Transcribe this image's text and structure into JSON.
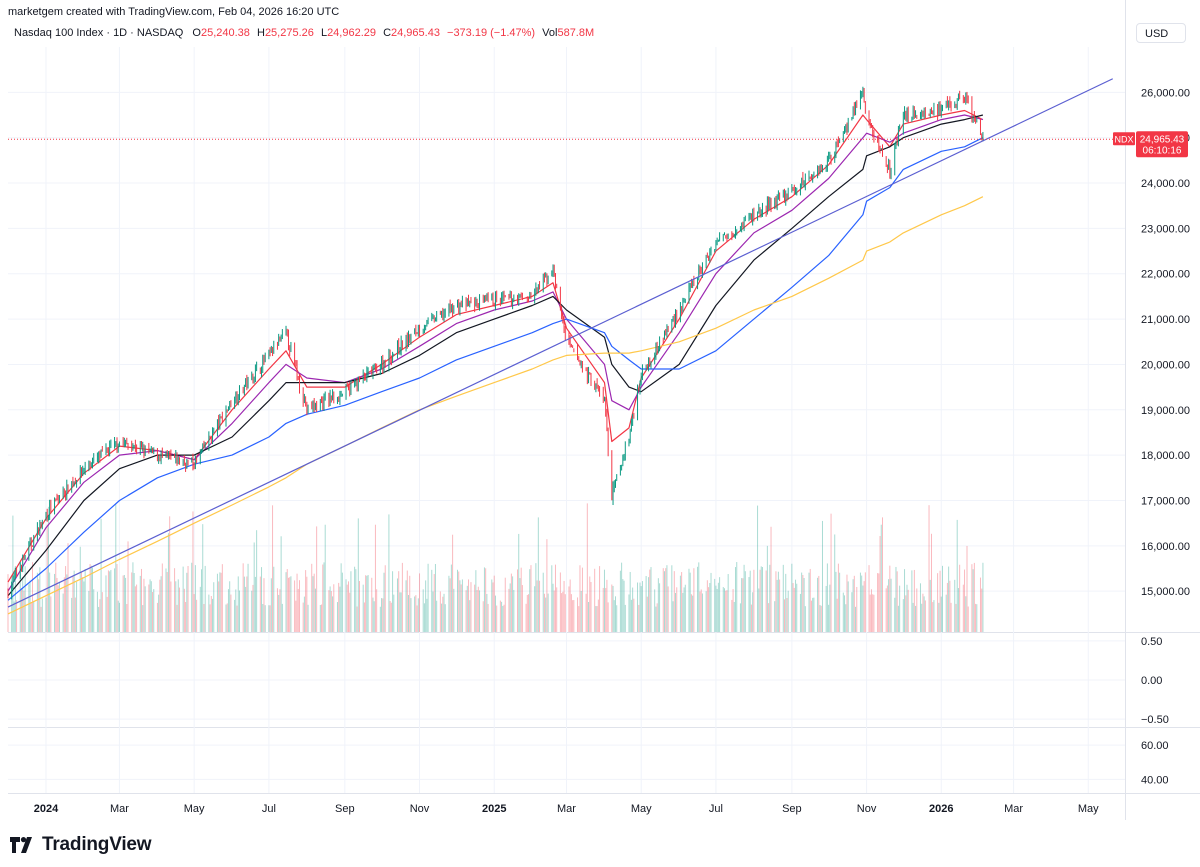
{
  "header": {
    "credit": "marketgem created with TradingView.com, Feb 04, 2026 16:20 UTC",
    "symbol": "Nasdaq 100 Index · 1D · NASDAQ",
    "open_label": "O",
    "open": "25,240.38",
    "high_label": "H",
    "high": "25,275.26",
    "low_label": "L",
    "low": "24,962.29",
    "close_label": "C",
    "close": "24,965.43",
    "change": "−373.19 (−1.47%)",
    "vol_label": "Vol",
    "vol": "587.8M",
    "currency_button": "USD"
  },
  "price_tag": {
    "symbol": "NDX",
    "price": "24,965.43",
    "countdown": "06:10:16"
  },
  "footer": {
    "brand": "TradingView"
  },
  "colors": {
    "up": "#089981",
    "down": "#f23645",
    "ema_fast": "#f23645",
    "ema_mid": "#9c27b0",
    "sma_black": "#131722",
    "sma_blue": "#2962ff",
    "sma_yellow": "#ffc84a",
    "trendline": "#5b5fd1"
  },
  "chart_data": [
    {
      "type": "line",
      "title": "Nasdaq 100 Index · 1D · NASDAQ",
      "x": [
        "2023-12-01",
        "2024-01-01",
        "2024-02-01",
        "2024-03-01",
        "2024-04-01",
        "2024-05-01",
        "2024-06-01",
        "2024-07-01",
        "2024-07-15",
        "2024-08-01",
        "2024-09-01",
        "2024-10-01",
        "2024-11-01",
        "2024-12-01",
        "2025-01-01",
        "2025-02-01",
        "2025-02-18",
        "2025-03-01",
        "2025-04-01",
        "2025-04-07",
        "2025-04-21",
        "2025-05-01",
        "2025-06-01",
        "2025-07-01",
        "2025-08-01",
        "2025-09-01",
        "2025-10-01",
        "2025-10-29",
        "2025-11-01",
        "2025-11-20",
        "2025-12-01",
        "2026-01-01",
        "2026-01-20",
        "2026-02-04"
      ],
      "series": [
        {
          "values": [
            15000,
            16700,
            17700,
            18300,
            18000,
            17800,
            19200,
            20200,
            20700,
            19000,
            19400,
            20000,
            20800,
            21300,
            21400,
            21500,
            22100,
            20500,
            19200,
            17100,
            18400,
            19800,
            21200,
            22700,
            23300,
            23800,
            24500,
            26000,
            25400,
            24300,
            25500,
            25600,
            25900,
            24965
          ]
        }
      ],
      "moving_averages": [
        {
          "type": "short_ma",
          "color": "#f23645",
          "values": [
            15200,
            16600,
            17600,
            18200,
            18100,
            17900,
            19000,
            19900,
            20300,
            19500,
            19500,
            20000,
            20600,
            21100,
            21300,
            21500,
            21800,
            20800,
            19600,
            18300,
            18600,
            19700,
            21000,
            22500,
            23200,
            23700,
            24400,
            25500,
            25400,
            24800,
            25300,
            25500,
            25600,
            25400
          ]
        },
        {
          "type": "mid_ma",
          "color": "#9c27b0",
          "values": [
            15000,
            16400,
            17400,
            18000,
            18100,
            17900,
            18700,
            19600,
            20000,
            19700,
            19600,
            19900,
            20400,
            20900,
            21200,
            21400,
            21600,
            21000,
            20000,
            19200,
            19000,
            19500,
            20700,
            22000,
            22900,
            23400,
            24100,
            25000,
            25100,
            24900,
            25100,
            25400,
            25500,
            25400
          ]
        },
        {
          "type": "sma_50",
          "color": "#131722",
          "values": [
            14900,
            15900,
            17000,
            17700,
            18000,
            18000,
            18400,
            19200,
            19600,
            19600,
            19600,
            19800,
            20200,
            20700,
            21000,
            21300,
            21500,
            21200,
            20600,
            20000,
            19500,
            19400,
            20000,
            21300,
            22300,
            23000,
            23700,
            24300,
            24600,
            24800,
            25000,
            25300,
            25400,
            25500
          ]
        },
        {
          "type": "sma_100",
          "color": "#2962ff",
          "values": [
            14800,
            15500,
            16300,
            17000,
            17500,
            17800,
            18000,
            18400,
            18700,
            18900,
            19100,
            19400,
            19700,
            20100,
            20400,
            20700,
            20900,
            21000,
            20700,
            20400,
            20100,
            19900,
            19900,
            20300,
            21000,
            21700,
            22400,
            23300,
            23600,
            23900,
            24300,
            24700,
            24800,
            25000
          ]
        },
        {
          "type": "sma_200",
          "color": "#ffc84a",
          "values": [
            14500,
            14900,
            15300,
            15700,
            16100,
            16500,
            16900,
            17300,
            17500,
            17800,
            18200,
            18600,
            19000,
            19300,
            19600,
            19900,
            20100,
            20200,
            20250,
            20250,
            20250,
            20300,
            20500,
            20800,
            21200,
            21500,
            21900,
            22300,
            22500,
            22700,
            22900,
            23300,
            23500,
            23700
          ]
        }
      ],
      "trendline": {
        "from": {
          "x": "2023-12-01",
          "y": 14650
        },
        "to": {
          "x": "2026-05-21",
          "y": 26300
        }
      },
      "last_price": 24965.43,
      "ylim": [
        14100,
        27000
      ],
      "yticks": [
        "15,000.00",
        "16,000.00",
        "17,000.00",
        "18,000.00",
        "19,000.00",
        "20,000.00",
        "21,000.00",
        "22,000.00",
        "23,000.00",
        "24,000.00",
        "25,000.00",
        "26,000.00"
      ],
      "ytick_values": [
        15000,
        16000,
        17000,
        18000,
        19000,
        20000,
        21000,
        22000,
        23000,
        24000,
        25000,
        26000
      ],
      "xticks": [
        "2024",
        "Mar",
        "May",
        "Jul",
        "Sep",
        "Nov",
        "2025",
        "Mar",
        "May",
        "Jul",
        "Sep",
        "Nov",
        "2026",
        "Mar",
        "May"
      ],
      "xtick_dates": [
        "2024-01-01",
        "2024-03-01",
        "2024-05-01",
        "2024-07-01",
        "2024-09-01",
        "2024-11-01",
        "2025-01-01",
        "2025-03-01",
        "2025-05-01",
        "2025-07-01",
        "2025-09-01",
        "2025-11-01",
        "2026-01-01",
        "2026-03-01",
        "2026-05-01"
      ],
      "xlim": [
        "2023-12-01",
        "2026-05-31"
      ]
    },
    {
      "type": "line",
      "yticks": [
        "0.50",
        "0.00",
        "−0.50"
      ],
      "ytick_values": [
        0.5,
        0,
        -0.5
      ],
      "ylim": [
        -0.6,
        0.6
      ]
    },
    {
      "type": "line",
      "yticks": [
        "60.00",
        "40.00"
      ],
      "ytick_values": [
        60,
        40
      ],
      "ylim": [
        32,
        70
      ]
    }
  ]
}
